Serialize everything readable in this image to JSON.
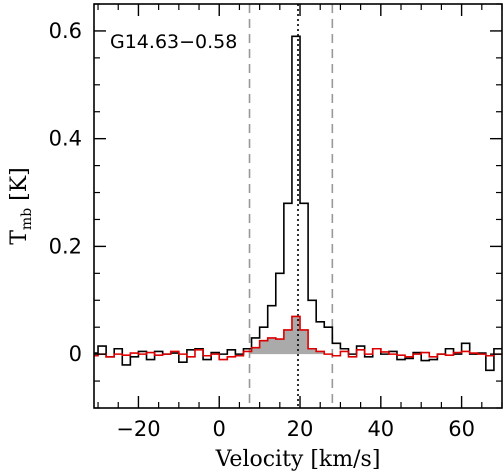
{
  "chart_data": {
    "type": "line",
    "title": "",
    "annotation": "G14.63−0.58",
    "xlabel": "Velocity [km/s]",
    "ylabel_main": "T",
    "ylabel_sub": "mb",
    "ylabel_unit": " [K]",
    "xlim": [
      -31,
      70
    ],
    "ylim": [
      -0.1,
      0.65
    ],
    "xticks": [
      -20,
      0,
      20,
      40,
      60
    ],
    "xtick_labels": [
      "−20",
      "0",
      "20",
      "40",
      "60"
    ],
    "yticks": [
      0,
      0.2,
      0.4,
      0.6
    ],
    "ytick_labels": [
      "0",
      "0.2",
      "0.4",
      "0.6"
    ],
    "x_minor_step": 5,
    "y_minor_step": 0.05,
    "vlines": [
      {
        "x": 7.5,
        "style": "dashed",
        "color": "#999999"
      },
      {
        "x": 19.5,
        "style": "dotted",
        "color": "#000000"
      },
      {
        "x": 28.0,
        "style": "dashed",
        "color": "#999999"
      }
    ],
    "shaded_region": {
      "from": 7.5,
      "to": 28.0,
      "series": "red",
      "color": "#aaaaaa"
    },
    "series": [
      {
        "id": "black",
        "style": "steps",
        "color": "#000000",
        "x": [
          -31,
          -29,
          -27,
          -25,
          -23,
          -21,
          -19,
          -17,
          -15,
          -13,
          -11,
          -9,
          -7,
          -5,
          -3,
          -1,
          1,
          3,
          5,
          7,
          9,
          11,
          13,
          15,
          17,
          19,
          21,
          23,
          25,
          27,
          29,
          31,
          33,
          35,
          37,
          39,
          41,
          43,
          45,
          47,
          49,
          51,
          53,
          55,
          57,
          59,
          61,
          63,
          65,
          67,
          69
        ],
        "y": [
          0.002,
          0.015,
          -0.005,
          0.01,
          -0.02,
          -0.005,
          0.005,
          -0.01,
          0.005,
          0.0,
          0.002,
          -0.015,
          0.008,
          0.01,
          -0.01,
          0.003,
          0.0,
          0.008,
          0.0,
          0.01,
          0.03,
          0.05,
          0.09,
          0.15,
          0.28,
          0.59,
          0.28,
          0.1,
          0.06,
          0.05,
          0.02,
          0.01,
          0.0,
          0.015,
          -0.005,
          0.01,
          0.0,
          0.005,
          -0.01,
          -0.008,
          0.003,
          -0.012,
          -0.01,
          0.0,
          0.01,
          0.0,
          0.02,
          0.0,
          0.002,
          -0.03,
          0.01
        ]
      },
      {
        "id": "red",
        "style": "steps",
        "color": "#dd0000",
        "x": [
          -31,
          -29,
          -27,
          -25,
          -23,
          -21,
          -19,
          -17,
          -15,
          -13,
          -11,
          -9,
          -7,
          -5,
          -3,
          -1,
          1,
          3,
          5,
          7,
          9,
          11,
          13,
          15,
          17,
          19,
          21,
          23,
          25,
          27,
          29,
          31,
          33,
          35,
          37,
          39,
          41,
          43,
          45,
          47,
          49,
          51,
          53,
          55,
          57,
          59,
          61,
          63,
          65,
          67,
          69
        ],
        "y": [
          -0.003,
          0.0,
          -0.005,
          0.0,
          -0.002,
          0.002,
          0.0,
          0.003,
          -0.002,
          0.0,
          0.005,
          0.0,
          -0.005,
          0.008,
          -0.003,
          0.0,
          -0.01,
          -0.005,
          -0.003,
          0.005,
          0.012,
          0.025,
          0.03,
          0.028,
          0.045,
          0.07,
          0.045,
          0.01,
          0.005,
          0.0,
          -0.003,
          0.005,
          -0.005,
          0.008,
          0.0,
          0.01,
          0.004,
          0.0,
          -0.002,
          -0.005,
          0.0,
          0.003,
          -0.005,
          0.0,
          -0.002,
          0.003,
          0.005,
          0.002,
          0.0,
          -0.003,
          0.0
        ]
      }
    ]
  }
}
